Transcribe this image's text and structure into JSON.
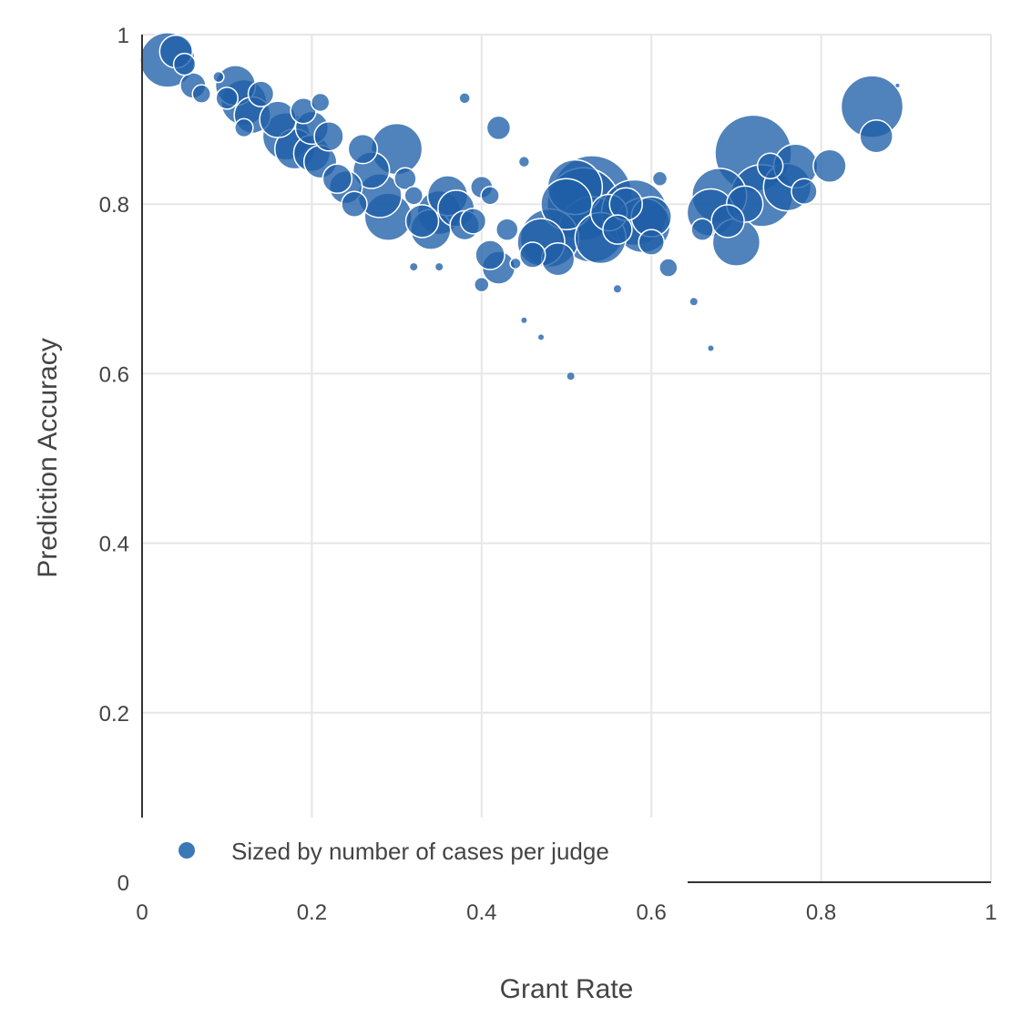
{
  "chart_data": {
    "type": "scatter",
    "title": "",
    "xlabel": "Grant Rate",
    "ylabel": "Prediction Accuracy",
    "xlim": [
      0,
      1
    ],
    "ylim": [
      0,
      1
    ],
    "x_ticks": [
      "0",
      "0.2",
      "0.4",
      "0.6",
      "0.8",
      "1"
    ],
    "y_ticks": [
      "0",
      "0.2",
      "0.4",
      "0.6",
      "0.8",
      "1"
    ],
    "grid": true,
    "legend": {
      "position": "bottom-left",
      "entries": [
        "Sized by number of cases per judge"
      ]
    },
    "marker_color": "#1f5fa8",
    "marker_outline": "#ffffff",
    "size_encoding": "number of cases per judge (relative marker size)",
    "series": [
      {
        "name": "Sized by number of cases per judge",
        "points": [
          {
            "x": 0.03,
            "y": 0.97,
            "s": 30
          },
          {
            "x": 0.04,
            "y": 0.98,
            "s": 18
          },
          {
            "x": 0.05,
            "y": 0.965,
            "s": 12
          },
          {
            "x": 0.06,
            "y": 0.94,
            "s": 14
          },
          {
            "x": 0.07,
            "y": 0.93,
            "s": 10
          },
          {
            "x": 0.09,
            "y": 0.95,
            "s": 6
          },
          {
            "x": 0.11,
            "y": 0.94,
            "s": 22
          },
          {
            "x": 0.12,
            "y": 0.92,
            "s": 25
          },
          {
            "x": 0.13,
            "y": 0.905,
            "s": 20
          },
          {
            "x": 0.1,
            "y": 0.925,
            "s": 12
          },
          {
            "x": 0.12,
            "y": 0.89,
            "s": 10
          },
          {
            "x": 0.14,
            "y": 0.93,
            "s": 14
          },
          {
            "x": 0.16,
            "y": 0.9,
            "s": 20
          },
          {
            "x": 0.17,
            "y": 0.88,
            "s": 26
          },
          {
            "x": 0.18,
            "y": 0.865,
            "s": 22
          },
          {
            "x": 0.19,
            "y": 0.91,
            "s": 14
          },
          {
            "x": 0.2,
            "y": 0.89,
            "s": 18
          },
          {
            "x": 0.21,
            "y": 0.92,
            "s": 10
          },
          {
            "x": 0.2,
            "y": 0.86,
            "s": 20
          },
          {
            "x": 0.21,
            "y": 0.85,
            "s": 18
          },
          {
            "x": 0.22,
            "y": 0.88,
            "s": 16
          },
          {
            "x": 0.23,
            "y": 0.83,
            "s": 16
          },
          {
            "x": 0.24,
            "y": 0.82,
            "s": 18
          },
          {
            "x": 0.25,
            "y": 0.8,
            "s": 14
          },
          {
            "x": 0.26,
            "y": 0.865,
            "s": 16
          },
          {
            "x": 0.27,
            "y": 0.84,
            "s": 20
          },
          {
            "x": 0.28,
            "y": 0.81,
            "s": 24
          },
          {
            "x": 0.29,
            "y": 0.785,
            "s": 26
          },
          {
            "x": 0.3,
            "y": 0.865,
            "s": 28
          },
          {
            "x": 0.31,
            "y": 0.83,
            "s": 12
          },
          {
            "x": 0.32,
            "y": 0.81,
            "s": 10
          },
          {
            "x": 0.33,
            "y": 0.78,
            "s": 18
          },
          {
            "x": 0.34,
            "y": 0.77,
            "s": 22
          },
          {
            "x": 0.35,
            "y": 0.79,
            "s": 24
          },
          {
            "x": 0.36,
            "y": 0.81,
            "s": 22
          },
          {
            "x": 0.37,
            "y": 0.795,
            "s": 20
          },
          {
            "x": 0.38,
            "y": 0.775,
            "s": 16
          },
          {
            "x": 0.39,
            "y": 0.78,
            "s": 14
          },
          {
            "x": 0.38,
            "y": 0.925,
            "s": 6
          },
          {
            "x": 0.4,
            "y": 0.82,
            "s": 12
          },
          {
            "x": 0.41,
            "y": 0.81,
            "s": 10
          },
          {
            "x": 0.41,
            "y": 0.74,
            "s": 16
          },
          {
            "x": 0.42,
            "y": 0.725,
            "s": 18
          },
          {
            "x": 0.42,
            "y": 0.89,
            "s": 13
          },
          {
            "x": 0.43,
            "y": 0.77,
            "s": 12
          },
          {
            "x": 0.4,
            "y": 0.705,
            "s": 8
          },
          {
            "x": 0.44,
            "y": 0.73,
            "s": 6
          },
          {
            "x": 0.45,
            "y": 0.85,
            "s": 6
          },
          {
            "x": 0.46,
            "y": 0.74,
            "s": 14
          },
          {
            "x": 0.47,
            "y": 0.755,
            "s": 26
          },
          {
            "x": 0.48,
            "y": 0.76,
            "s": 32
          },
          {
            "x": 0.49,
            "y": 0.735,
            "s": 18
          },
          {
            "x": 0.5,
            "y": 0.8,
            "s": 28
          },
          {
            "x": 0.51,
            "y": 0.82,
            "s": 30
          },
          {
            "x": 0.52,
            "y": 0.8,
            "s": 40
          },
          {
            "x": 0.53,
            "y": 0.81,
            "s": 44
          },
          {
            "x": 0.53,
            "y": 0.77,
            "s": 36
          },
          {
            "x": 0.54,
            "y": 0.76,
            "s": 28
          },
          {
            "x": 0.55,
            "y": 0.79,
            "s": 20
          },
          {
            "x": 0.56,
            "y": 0.77,
            "s": 16
          },
          {
            "x": 0.57,
            "y": 0.8,
            "s": 18
          },
          {
            "x": 0.58,
            "y": 0.79,
            "s": 36
          },
          {
            "x": 0.59,
            "y": 0.775,
            "s": 30
          },
          {
            "x": 0.6,
            "y": 0.785,
            "s": 22
          },
          {
            "x": 0.6,
            "y": 0.755,
            "s": 14
          },
          {
            "x": 0.62,
            "y": 0.725,
            "s": 10
          },
          {
            "x": 0.61,
            "y": 0.83,
            "s": 8
          },
          {
            "x": 0.505,
            "y": 0.597,
            "s": 4
          },
          {
            "x": 0.47,
            "y": 0.643,
            "s": 3
          },
          {
            "x": 0.45,
            "y": 0.663,
            "s": 3
          },
          {
            "x": 0.56,
            "y": 0.7,
            "s": 4
          },
          {
            "x": 0.65,
            "y": 0.685,
            "s": 4
          },
          {
            "x": 0.67,
            "y": 0.63,
            "s": 3
          },
          {
            "x": 0.32,
            "y": 0.726,
            "s": 4
          },
          {
            "x": 0.35,
            "y": 0.726,
            "s": 4
          },
          {
            "x": 0.66,
            "y": 0.77,
            "s": 12
          },
          {
            "x": 0.67,
            "y": 0.79,
            "s": 26
          },
          {
            "x": 0.68,
            "y": 0.81,
            "s": 30
          },
          {
            "x": 0.69,
            "y": 0.78,
            "s": 18
          },
          {
            "x": 0.7,
            "y": 0.755,
            "s": 26
          },
          {
            "x": 0.71,
            "y": 0.8,
            "s": 20
          },
          {
            "x": 0.72,
            "y": 0.86,
            "s": 42
          },
          {
            "x": 0.73,
            "y": 0.81,
            "s": 34
          },
          {
            "x": 0.74,
            "y": 0.845,
            "s": 14
          },
          {
            "x": 0.76,
            "y": 0.82,
            "s": 26
          },
          {
            "x": 0.77,
            "y": 0.845,
            "s": 24
          },
          {
            "x": 0.78,
            "y": 0.815,
            "s": 14
          },
          {
            "x": 0.81,
            "y": 0.845,
            "s": 18
          },
          {
            "x": 0.86,
            "y": 0.915,
            "s": 34
          },
          {
            "x": 0.865,
            "y": 0.88,
            "s": 18
          },
          {
            "x": 0.89,
            "y": 0.94,
            "s": 2
          }
        ]
      }
    ]
  }
}
